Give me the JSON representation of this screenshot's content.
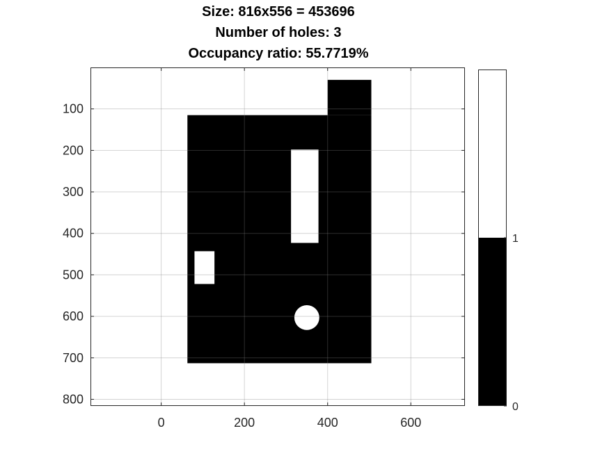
{
  "title_lines": [
    "Size: 816x556 = 453696",
    "Number of holes: 3",
    "Occupancy ratio: 55.7719%"
  ],
  "chart_data": {
    "type": "heatmap",
    "description_values": {
      "image_width": 556,
      "image_height": 816
    },
    "xlim": [
      -170,
      730
    ],
    "ylim": [
      816,
      0
    ],
    "y_reversed": true,
    "grid": true,
    "x_ticks": [
      0,
      200,
      400,
      600
    ],
    "x_tick_labels": [
      "0",
      "200",
      "400",
      "600"
    ],
    "y_ticks": [
      100,
      200,
      300,
      400,
      500,
      600,
      700,
      800
    ],
    "y_tick_labels": [
      "100",
      "200",
      "300",
      "400",
      "500",
      "600",
      "700",
      "800"
    ],
    "colormap": [
      "#000000",
      "#ffffff"
    ],
    "background_value": 0,
    "background_color": "#ffffff",
    "occupied_color": "#000000",
    "occupied_regions": [
      {
        "x0": 63,
        "x1": 505,
        "y0": 115,
        "y1": 713
      },
      {
        "x0": 400,
        "x1": 505,
        "y0": 30,
        "y1": 115
      }
    ],
    "holes": [
      {
        "shape": "rect",
        "x0": 312,
        "x1": 378,
        "y0": 198,
        "y1": 423
      },
      {
        "shape": "rect",
        "x0": 80,
        "x1": 128,
        "y0": 443,
        "y1": 522
      },
      {
        "shape": "circle",
        "cx": 350,
        "cy": 603,
        "r": 30
      }
    ],
    "colorbar": {
      "ticks": [
        0,
        1
      ],
      "tick_labels": [
        "0",
        "1"
      ],
      "range": [
        0,
        2
      ]
    }
  }
}
